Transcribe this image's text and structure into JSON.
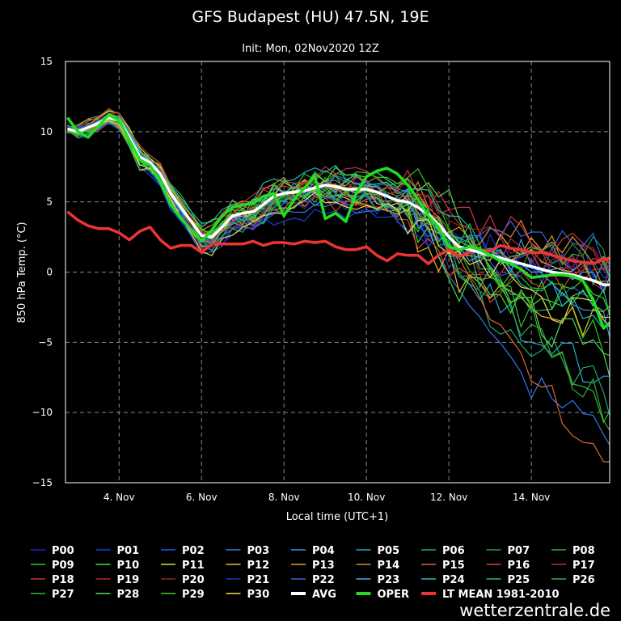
{
  "chart_data": {
    "type": "line",
    "title": "GFS Budapest (HU) 47.5N, 19E",
    "subtitle": "Init: Mon, 02Nov2020 12Z",
    "xlabel": "Local time (UTC+1)",
    "ylabel": "850 hPa Temp. (°C)",
    "xlim": [
      2.7,
      15.9
    ],
    "ylim": [
      -15,
      15
    ],
    "yticks": [
      15,
      10,
      5,
      0,
      -5,
      -10,
      -15
    ],
    "yticklabels": [
      "15",
      "10",
      "5",
      "0",
      "−5",
      "−10",
      "−15"
    ],
    "xticks": [
      4,
      6,
      8,
      10,
      12,
      14
    ],
    "xticklabels": [
      "4. Nov",
      "6. Nov",
      "8. Nov",
      "10. Nov",
      "12. Nov",
      "14. Nov"
    ],
    "grid": true,
    "avg": {
      "name": "AVG",
      "color": "#ffffff",
      "x": [
        2.75,
        3.0,
        3.25,
        3.5,
        3.75,
        4.0,
        4.25,
        4.5,
        4.75,
        5.0,
        5.25,
        5.5,
        5.75,
        6.0,
        6.25,
        6.5,
        6.75,
        7.0,
        7.25,
        7.5,
        7.75,
        8.0,
        8.25,
        8.5,
        8.75,
        9.0,
        9.25,
        9.5,
        9.75,
        10.0,
        10.25,
        10.5,
        10.75,
        11.0,
        11.25,
        11.5,
        11.75,
        12.0,
        12.25,
        12.5,
        12.75,
        13.0,
        13.25,
        13.5,
        13.75,
        14.0,
        14.25,
        14.5,
        14.75,
        15.0,
        15.25,
        15.5,
        15.75,
        15.9
      ],
      "y": [
        10.2,
        10.0,
        10.3,
        10.6,
        11.0,
        10.8,
        9.6,
        8.2,
        7.8,
        7.0,
        5.6,
        4.6,
        3.6,
        2.6,
        2.5,
        3.2,
        4.0,
        4.2,
        4.3,
        4.8,
        5.4,
        5.6,
        5.7,
        5.8,
        6.0,
        6.2,
        6.1,
        5.9,
        5.9,
        5.9,
        5.7,
        5.4,
        5.1,
        5.0,
        4.6,
        4.1,
        3.4,
        2.5,
        1.8,
        1.6,
        1.4,
        1.2,
        1.0,
        0.8,
        0.6,
        0.4,
        0.2,
        0.0,
        -0.1,
        -0.2,
        -0.4,
        -0.6,
        -0.9,
        -0.9
      ]
    },
    "oper": {
      "name": "OPER",
      "color": "#22dd22",
      "x": [
        2.75,
        3.0,
        3.25,
        3.5,
        3.75,
        4.0,
        4.25,
        4.5,
        4.75,
        5.0,
        5.25,
        5.5,
        5.75,
        6.0,
        6.25,
        6.5,
        6.75,
        7.0,
        7.25,
        7.5,
        7.75,
        8.0,
        8.25,
        8.5,
        8.75,
        9.0,
        9.25,
        9.5,
        9.75,
        10.0,
        10.25,
        10.5,
        10.75,
        11.0,
        11.25,
        11.5,
        11.75,
        12.0,
        12.25,
        12.5,
        12.75,
        13.0,
        13.25,
        13.5,
        13.75,
        14.0,
        14.25,
        14.5,
        14.75,
        15.0,
        15.25,
        15.5,
        15.75,
        15.9
      ],
      "y": [
        11.0,
        10.0,
        9.6,
        10.4,
        11.2,
        10.8,
        9.4,
        8.0,
        7.6,
        6.4,
        4.8,
        3.8,
        3.0,
        2.2,
        3.0,
        4.0,
        4.6,
        4.8,
        4.9,
        5.4,
        5.6,
        4.0,
        5.2,
        6.0,
        6.8,
        3.8,
        4.2,
        3.6,
        5.6,
        6.8,
        7.2,
        7.4,
        7.0,
        6.2,
        5.2,
        4.0,
        3.2,
        1.8,
        1.6,
        1.8,
        1.6,
        1.2,
        0.8,
        0.6,
        0.2,
        -0.4,
        -0.3,
        -0.2,
        -0.2,
        -0.3,
        -0.6,
        -2.0,
        -4.0,
        -3.6
      ]
    },
    "lt_mean": {
      "name": "LT MEAN 1981-2010",
      "color": "#ee3333",
      "x": [
        2.75,
        3.0,
        3.25,
        3.5,
        3.75,
        4.0,
        4.25,
        4.5,
        4.75,
        5.0,
        5.25,
        5.5,
        5.75,
        6.0,
        6.25,
        6.5,
        6.75,
        7.0,
        7.25,
        7.5,
        7.75,
        8.0,
        8.25,
        8.5,
        8.75,
        9.0,
        9.25,
        9.5,
        9.75,
        10.0,
        10.25,
        10.5,
        10.75,
        11.0,
        11.25,
        11.5,
        11.75,
        12.0,
        12.25,
        12.5,
        12.75,
        13.0,
        13.25,
        13.5,
        13.75,
        14.0,
        14.25,
        14.5,
        14.75,
        15.0,
        15.25,
        15.5,
        15.75,
        15.9
      ],
      "y": [
        4.3,
        3.7,
        3.3,
        3.1,
        3.1,
        2.8,
        2.3,
        2.9,
        3.2,
        2.3,
        1.7,
        1.9,
        1.9,
        1.4,
        2.0,
        2.0,
        2.0,
        2.0,
        2.2,
        1.9,
        2.1,
        2.1,
        2.0,
        2.2,
        2.1,
        2.2,
        1.8,
        1.6,
        1.6,
        1.8,
        1.2,
        0.8,
        1.3,
        1.2,
        1.2,
        0.6,
        1.2,
        1.6,
        1.1,
        1.4,
        1.6,
        1.5,
        1.9,
        1.7,
        1.6,
        1.4,
        1.4,
        1.2,
        1.0,
        0.8,
        0.7,
        0.6,
        0.9,
        1.0
      ]
    },
    "legend": [
      {
        "label": "P00",
        "color": "#2222cc"
      },
      {
        "label": "P01",
        "color": "#1144dd"
      },
      {
        "label": "P02",
        "color": "#2255ee"
      },
      {
        "label": "P03",
        "color": "#3377ee"
      },
      {
        "label": "P04",
        "color": "#3399dd"
      },
      {
        "label": "P05",
        "color": "#22aacc"
      },
      {
        "label": "P06",
        "color": "#22aa66"
      },
      {
        "label": "P07",
        "color": "#229944"
      },
      {
        "label": "P08",
        "color": "#33aa33"
      },
      {
        "label": "P09",
        "color": "#22cc22"
      },
      {
        "label": "P10",
        "color": "#44dd44"
      },
      {
        "label": "P11",
        "color": "#dddd33"
      },
      {
        "label": "P12",
        "color": "#eebb22"
      },
      {
        "label": "P13",
        "color": "#ee9922"
      },
      {
        "label": "P14",
        "color": "#dd8833"
      },
      {
        "label": "P15",
        "color": "#dd6633"
      },
      {
        "label": "P16",
        "color": "#cc4433"
      },
      {
        "label": "P17",
        "color": "#bb3333"
      },
      {
        "label": "P18",
        "color": "#cc3344"
      },
      {
        "label": "P19",
        "color": "#bb2233"
      },
      {
        "label": "P20",
        "color": "#992222"
      },
      {
        "label": "P21",
        "color": "#2233bb"
      },
      {
        "label": "P22",
        "color": "#3366dd"
      },
      {
        "label": "P23",
        "color": "#44aaee"
      },
      {
        "label": "P24",
        "color": "#22bbbb"
      },
      {
        "label": "P25",
        "color": "#22bb77"
      },
      {
        "label": "P26",
        "color": "#33aa55"
      },
      {
        "label": "P27",
        "color": "#33bb33"
      },
      {
        "label": "P28",
        "color": "#55dd55"
      },
      {
        "label": "P29",
        "color": "#44cc22"
      },
      {
        "label": "P30",
        "color": "#eedd55"
      },
      {
        "label": "AVG",
        "color": "#ffffff"
      },
      {
        "label": "OPER",
        "color": "#22dd22"
      },
      {
        "label": "LT MEAN 1981-2010",
        "color": "#ee3333"
      }
    ]
  },
  "brand": "wetterzentrale.de"
}
